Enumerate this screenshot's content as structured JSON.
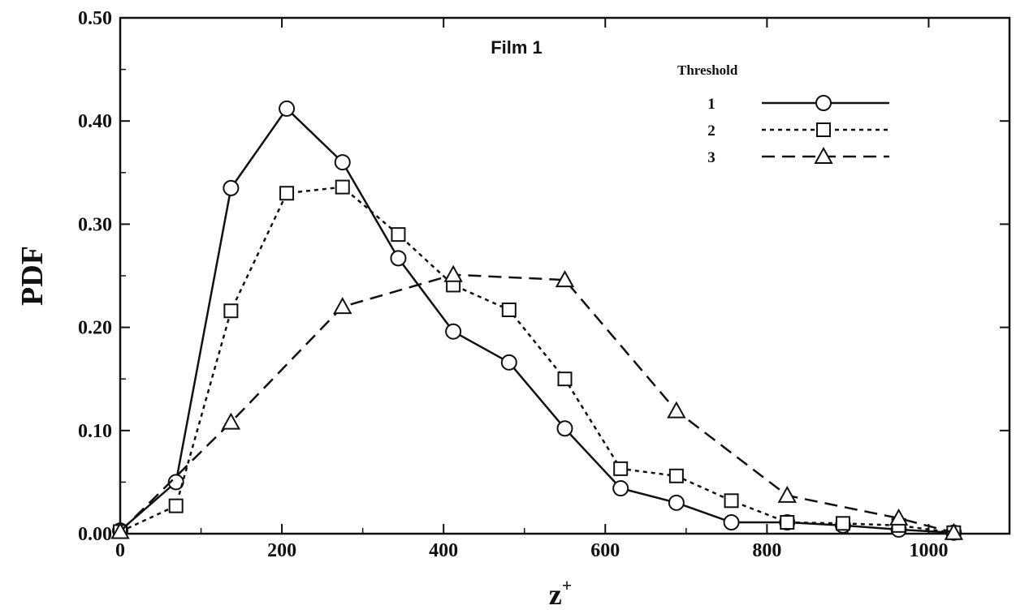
{
  "chart_data": {
    "type": "line",
    "title": "Film 1",
    "xlabel": "z",
    "xlabel_superscript": "+",
    "ylabel": "PDF",
    "xlim": [
      0,
      1100
    ],
    "ylim": [
      0,
      0.5
    ],
    "x_ticks": [
      0,
      200,
      400,
      600,
      800,
      1000
    ],
    "x_tick_labels": [
      "0",
      "200",
      "400",
      "600",
      "800",
      "1000"
    ],
    "y_ticks": [
      0,
      0.1,
      0.2,
      0.3,
      0.4,
      0.5
    ],
    "y_tick_labels": [
      "0.00",
      "0.10",
      "0.20",
      "0.30",
      "0.40",
      "0.50"
    ],
    "grid": false,
    "legend": {
      "title": "Threshold",
      "position": "top-right"
    },
    "series": [
      {
        "name": "1",
        "marker": "circle",
        "line_style": "solid",
        "x": [
          0,
          69,
          137,
          206,
          275,
          344,
          412,
          481,
          550,
          619,
          688,
          756,
          825,
          894,
          963,
          1031
        ],
        "y": [
          0.003,
          0.05,
          0.335,
          0.412,
          0.36,
          0.267,
          0.196,
          0.166,
          0.102,
          0.044,
          0.03,
          0.011,
          0.011,
          0.008,
          0.004,
          0.001
        ]
      },
      {
        "name": "2",
        "marker": "square",
        "line_style": "dotted",
        "x": [
          0,
          69,
          137,
          206,
          275,
          344,
          412,
          481,
          550,
          619,
          688,
          756,
          825,
          894,
          963,
          1031
        ],
        "y": [
          0.002,
          0.027,
          0.216,
          0.33,
          0.336,
          0.29,
          0.241,
          0.217,
          0.15,
          0.063,
          0.056,
          0.032,
          0.011,
          0.01,
          0.008,
          0.001
        ]
      },
      {
        "name": "3",
        "marker": "triangle",
        "line_style": "dashed",
        "x": [
          0,
          137,
          275,
          412,
          550,
          688,
          825,
          963,
          1031
        ],
        "y": [
          0.002,
          0.108,
          0.22,
          0.251,
          0.246,
          0.119,
          0.037,
          0.015,
          0.001
        ]
      }
    ]
  }
}
